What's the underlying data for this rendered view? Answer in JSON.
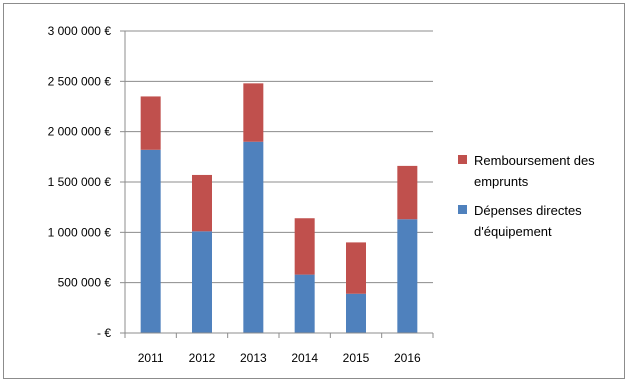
{
  "chart_data": {
    "type": "bar",
    "stacked": true,
    "categories": [
      "2011",
      "2012",
      "2013",
      "2014",
      "2015",
      "2016"
    ],
    "series": [
      {
        "name": "Dépenses directes d'équipement",
        "legend_lines": [
          "Dépenses directes",
          "d'équipement"
        ],
        "color": "#4f81bd",
        "values": [
          1820000,
          1010000,
          1900000,
          580000,
          390000,
          1130000
        ]
      },
      {
        "name": "Remboursement des emprunts",
        "legend_lines": [
          "Remboursement des",
          "emprunts"
        ],
        "color": "#c0504d",
        "values": [
          530000,
          560000,
          580000,
          560000,
          510000,
          530000
        ]
      }
    ],
    "ylim": [
      0,
      3000000
    ],
    "yticks": [
      {
        "value": 0,
        "label": "-   €"
      },
      {
        "value": 500000,
        "label": "500 000 €"
      },
      {
        "value": 1000000,
        "label": "1 000 000 €"
      },
      {
        "value": 1500000,
        "label": "1 500 000 €"
      },
      {
        "value": 2000000,
        "label": "2 000 000 €"
      },
      {
        "value": 2500000,
        "label": "2 500 000 €"
      },
      {
        "value": 3000000,
        "label": "3 000 000 €"
      }
    ],
    "grid": true,
    "legend_position": "right"
  }
}
